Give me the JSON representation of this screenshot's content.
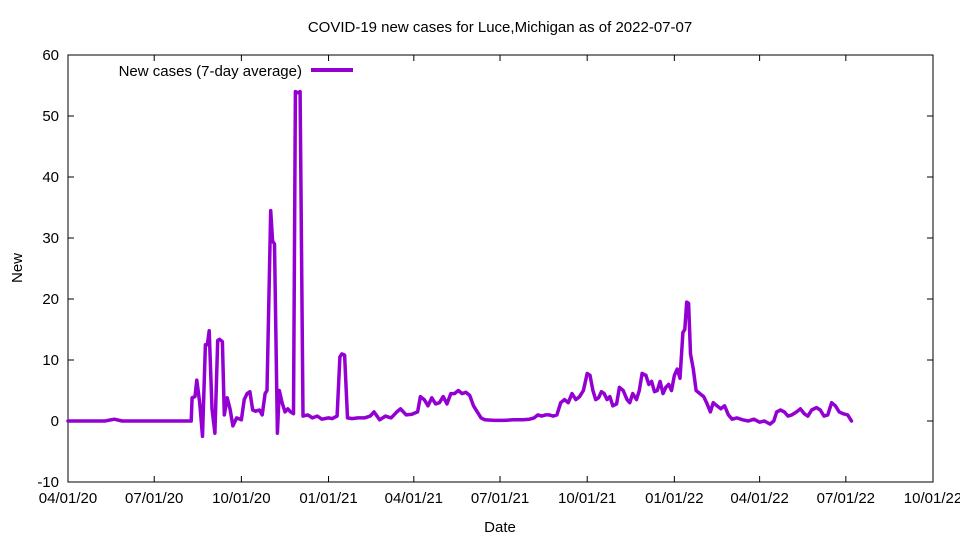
{
  "chart_data": {
    "type": "line",
    "title": "COVID-19 new cases for Luce,Michigan as of 2022-07-07",
    "xlabel": "Date",
    "ylabel": "New",
    "xlim": [
      "2020-04-01",
      "2022-10-01"
    ],
    "ylim": [
      -10,
      60
    ],
    "x_ticks": [
      "2020-04-01",
      "2020-07-01",
      "2020-10-01",
      "2021-01-01",
      "2021-04-01",
      "2021-07-01",
      "2021-10-01",
      "2022-01-01",
      "2022-04-01",
      "2022-07-01",
      "2022-10-01"
    ],
    "x_tick_labels": [
      "04/01/20",
      "07/01/20",
      "10/01/20",
      "01/01/21",
      "04/01/21",
      "07/01/21",
      "10/01/21",
      "01/01/22",
      "04/01/22",
      "07/01/22",
      "10/01/22"
    ],
    "y_ticks": [
      -10,
      0,
      10,
      20,
      30,
      40,
      50,
      60
    ],
    "y_tick_labels": [
      "-10",
      "0",
      "10",
      "20",
      "30",
      "40",
      "50",
      "60"
    ],
    "grid": false,
    "legend_position": "top-left",
    "series": [
      {
        "name": "New cases (7-day average)",
        "color": "#9400d3",
        "points": [
          [
            "2020-04-01",
            0
          ],
          [
            "2020-04-20",
            0
          ],
          [
            "2020-05-10",
            0
          ],
          [
            "2020-05-20",
            0.3
          ],
          [
            "2020-05-28",
            0
          ],
          [
            "2020-07-01",
            0
          ],
          [
            "2020-08-09",
            0
          ],
          [
            "2020-08-10",
            3.8
          ],
          [
            "2020-08-13",
            4
          ],
          [
            "2020-08-15",
            6.7
          ],
          [
            "2020-08-18",
            3
          ],
          [
            "2020-08-21",
            -2.5
          ],
          [
            "2020-08-24",
            12.5
          ],
          [
            "2020-08-26",
            12.5
          ],
          [
            "2020-08-28",
            14.8
          ],
          [
            "2020-08-31",
            2
          ],
          [
            "2020-09-03",
            -2
          ],
          [
            "2020-09-06",
            13.2
          ],
          [
            "2020-09-08",
            13.4
          ],
          [
            "2020-09-11",
            13
          ],
          [
            "2020-09-13",
            1
          ],
          [
            "2020-09-16",
            3.8
          ],
          [
            "2020-09-19",
            2
          ],
          [
            "2020-09-22",
            -0.8
          ],
          [
            "2020-09-26",
            0.5
          ],
          [
            "2020-10-01",
            0.2
          ],
          [
            "2020-10-04",
            3.5
          ],
          [
            "2020-10-07",
            4.5
          ],
          [
            "2020-10-10",
            4.8
          ],
          [
            "2020-10-13",
            1.8
          ],
          [
            "2020-10-16",
            1.6
          ],
          [
            "2020-10-20",
            1.8
          ],
          [
            "2020-10-23",
            1
          ],
          [
            "2020-10-26",
            4.5
          ],
          [
            "2020-10-28",
            5
          ],
          [
            "2020-11-01",
            34.5
          ],
          [
            "2020-11-03",
            29.5
          ],
          [
            "2020-11-05",
            29
          ],
          [
            "2020-11-08",
            -2
          ],
          [
            "2020-11-10",
            5
          ],
          [
            "2020-11-13",
            3
          ],
          [
            "2020-11-16",
            1.5
          ],
          [
            "2020-11-19",
            2
          ],
          [
            "2020-11-22",
            1.5
          ],
          [
            "2020-11-25",
            1.2
          ],
          [
            "2020-11-27",
            54
          ],
          [
            "2020-11-30",
            53.8
          ],
          [
            "2020-12-02",
            54
          ],
          [
            "2020-12-05",
            0.8
          ],
          [
            "2020-12-10",
            1
          ],
          [
            "2020-12-15",
            0.5
          ],
          [
            "2020-12-20",
            0.8
          ],
          [
            "2020-12-25",
            0.3
          ],
          [
            "2021-01-01",
            0.5
          ],
          [
            "2021-01-05",
            0.4
          ],
          [
            "2021-01-10",
            0.8
          ],
          [
            "2021-01-13",
            10.5
          ],
          [
            "2021-01-15",
            11
          ],
          [
            "2021-01-18",
            10.8
          ],
          [
            "2021-01-21",
            0.5
          ],
          [
            "2021-01-26",
            0.4
          ],
          [
            "2021-02-01",
            0.5
          ],
          [
            "2021-02-08",
            0.5
          ],
          [
            "2021-02-14",
            0.8
          ],
          [
            "2021-02-18",
            1.5
          ],
          [
            "2021-02-24",
            0.2
          ],
          [
            "2021-03-02",
            0.8
          ],
          [
            "2021-03-08",
            0.5
          ],
          [
            "2021-03-14",
            1.5
          ],
          [
            "2021-03-18",
            2
          ],
          [
            "2021-03-24",
            1
          ],
          [
            "2021-03-30",
            1.1
          ],
          [
            "2021-04-05",
            1.5
          ],
          [
            "2021-04-08",
            4
          ],
          [
            "2021-04-12",
            3.5
          ],
          [
            "2021-04-16",
            2.5
          ],
          [
            "2021-04-20",
            3.8
          ],
          [
            "2021-04-24",
            2.8
          ],
          [
            "2021-04-28",
            3
          ],
          [
            "2021-05-02",
            4
          ],
          [
            "2021-05-06",
            2.8
          ],
          [
            "2021-05-10",
            4.5
          ],
          [
            "2021-05-14",
            4.5
          ],
          [
            "2021-05-18",
            5
          ],
          [
            "2021-05-22",
            4.5
          ],
          [
            "2021-05-26",
            4.7
          ],
          [
            "2021-05-30",
            4.2
          ],
          [
            "2021-06-03",
            2.5
          ],
          [
            "2021-06-07",
            1.5
          ],
          [
            "2021-06-11",
            0.5
          ],
          [
            "2021-06-15",
            0.2
          ],
          [
            "2021-06-25",
            0.1
          ],
          [
            "2021-07-05",
            0.1
          ],
          [
            "2021-07-15",
            0.2
          ],
          [
            "2021-07-25",
            0.2
          ],
          [
            "2021-08-01",
            0.3
          ],
          [
            "2021-08-06",
            0.5
          ],
          [
            "2021-08-10",
            1
          ],
          [
            "2021-08-14",
            0.8
          ],
          [
            "2021-08-18",
            1
          ],
          [
            "2021-08-22",
            1
          ],
          [
            "2021-08-26",
            0.8
          ],
          [
            "2021-08-30",
            1
          ],
          [
            "2021-09-03",
            3
          ],
          [
            "2021-09-07",
            3.5
          ],
          [
            "2021-09-11",
            3
          ],
          [
            "2021-09-15",
            4.5
          ],
          [
            "2021-09-19",
            3.5
          ],
          [
            "2021-09-23",
            4
          ],
          [
            "2021-09-27",
            5
          ],
          [
            "2021-10-01",
            7.8
          ],
          [
            "2021-10-04",
            7.5
          ],
          [
            "2021-10-07",
            5
          ],
          [
            "2021-10-10",
            3.5
          ],
          [
            "2021-10-13",
            3.8
          ],
          [
            "2021-10-16",
            4.8
          ],
          [
            "2021-10-19",
            4.5
          ],
          [
            "2021-10-22",
            3.5
          ],
          [
            "2021-10-25",
            4
          ],
          [
            "2021-10-28",
            2.5
          ],
          [
            "2021-11-01",
            2.8
          ],
          [
            "2021-11-04",
            5.5
          ],
          [
            "2021-11-08",
            5
          ],
          [
            "2021-11-12",
            3.5
          ],
          [
            "2021-11-15",
            3
          ],
          [
            "2021-11-18",
            4.5
          ],
          [
            "2021-11-22",
            3.5
          ],
          [
            "2021-11-25",
            5
          ],
          [
            "2021-11-28",
            7.8
          ],
          [
            "2021-12-02",
            7.5
          ],
          [
            "2021-12-05",
            6
          ],
          [
            "2021-12-08",
            6.5
          ],
          [
            "2021-12-11",
            4.8
          ],
          [
            "2021-12-14",
            5
          ],
          [
            "2021-12-17",
            6.5
          ],
          [
            "2021-12-20",
            4.5
          ],
          [
            "2021-12-23",
            5.5
          ],
          [
            "2021-12-26",
            6
          ],
          [
            "2021-12-29",
            5
          ],
          [
            "2022-01-01",
            7.5
          ],
          [
            "2022-01-04",
            8.5
          ],
          [
            "2022-01-07",
            7
          ],
          [
            "2022-01-10",
            14.5
          ],
          [
            "2022-01-12",
            15
          ],
          [
            "2022-01-14",
            19.5
          ],
          [
            "2022-01-16",
            19.3
          ],
          [
            "2022-01-18",
            11
          ],
          [
            "2022-01-21",
            8.5
          ],
          [
            "2022-01-24",
            5
          ],
          [
            "2022-01-28",
            4.5
          ],
          [
            "2022-02-01",
            4
          ],
          [
            "2022-02-04",
            3
          ],
          [
            "2022-02-08",
            1.5
          ],
          [
            "2022-02-11",
            3
          ],
          [
            "2022-02-15",
            2.5
          ],
          [
            "2022-02-19",
            2
          ],
          [
            "2022-02-23",
            2.5
          ],
          [
            "2022-02-27",
            1
          ],
          [
            "2022-03-03",
            0.3
          ],
          [
            "2022-03-08",
            0.5
          ],
          [
            "2022-03-14",
            0.2
          ],
          [
            "2022-03-20",
            0
          ],
          [
            "2022-03-26",
            0.3
          ],
          [
            "2022-04-01",
            -0.2
          ],
          [
            "2022-04-06",
            0
          ],
          [
            "2022-04-12",
            -0.5
          ],
          [
            "2022-04-16",
            0
          ],
          [
            "2022-04-19",
            1.5
          ],
          [
            "2022-04-23",
            1.8
          ],
          [
            "2022-04-27",
            1.5
          ],
          [
            "2022-05-01",
            0.8
          ],
          [
            "2022-05-05",
            1
          ],
          [
            "2022-05-10",
            1.5
          ],
          [
            "2022-05-14",
            2
          ],
          [
            "2022-05-18",
            1.2
          ],
          [
            "2022-05-22",
            0.8
          ],
          [
            "2022-05-26",
            1.8
          ],
          [
            "2022-05-31",
            2.2
          ],
          [
            "2022-06-04",
            1.8
          ],
          [
            "2022-06-08",
            0.8
          ],
          [
            "2022-06-12",
            1
          ],
          [
            "2022-06-16",
            3
          ],
          [
            "2022-06-20",
            2.5
          ],
          [
            "2022-06-24",
            1.5
          ],
          [
            "2022-06-28",
            1.2
          ],
          [
            "2022-07-03",
            1
          ],
          [
            "2022-07-07",
            0
          ]
        ]
      }
    ]
  }
}
